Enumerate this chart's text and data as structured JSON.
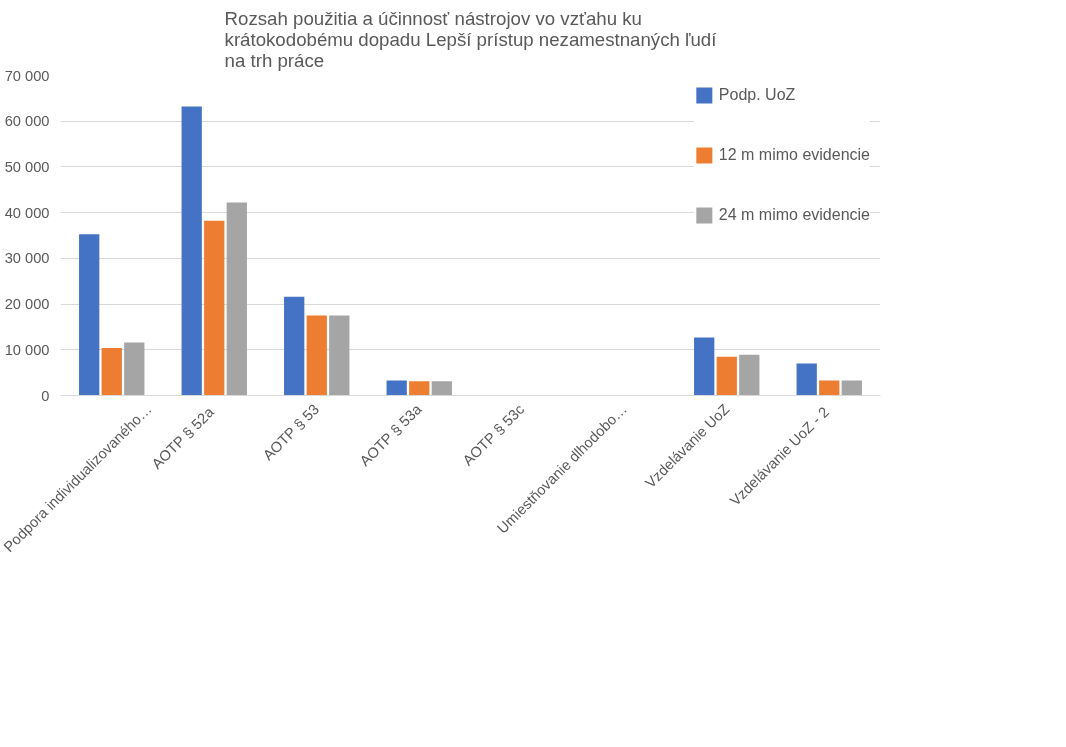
{
  "chart_data": {
    "type": "bar",
    "title": "Rozsah použitia a účinnosť nástrojov vo vzťahu ku krátokodobému dopadu Lepší prístup nezamestnaných ľudí na trh práce",
    "categories": [
      "Podpora individualizovaného…",
      "AOTP  § 52a",
      "AOTP § 53",
      "AOTP § 53a",
      "AOTP § 53c",
      "Umiestňovanie dlhodobo…",
      "Vzdelávanie UoZ",
      "Vzdelávanie UoZ  - 2"
    ],
    "series": [
      {
        "name": "Podp. UoZ",
        "color": "#4472c4",
        "values": [
          35300,
          63200,
          21600,
          3300,
          0,
          0,
          12700,
          7000
        ]
      },
      {
        "name": "12 m mimo evidencie",
        "color": "#ed7d31",
        "values": [
          10400,
          38200,
          17500,
          3100,
          0,
          0,
          8500,
          3300
        ]
      },
      {
        "name": "24 m mimo evidencie",
        "color": "#a5a5a5",
        "values": [
          11600,
          42200,
          17500,
          3100,
          0,
          0,
          8900,
          3300
        ]
      }
    ],
    "ylim": [
      0,
      70000
    ],
    "yticks": [
      {
        "value": 0,
        "label": "0"
      },
      {
        "value": 10000,
        "label": "10 000"
      },
      {
        "value": 20000,
        "label": "20 000"
      },
      {
        "value": 30000,
        "label": "30 000"
      },
      {
        "value": 40000,
        "label": "40 000"
      },
      {
        "value": 50000,
        "label": "50 000"
      },
      {
        "value": 60000,
        "label": "60 000"
      },
      {
        "value": 70000,
        "label": "70 000"
      }
    ],
    "grid": "y",
    "legend": "top right"
  }
}
